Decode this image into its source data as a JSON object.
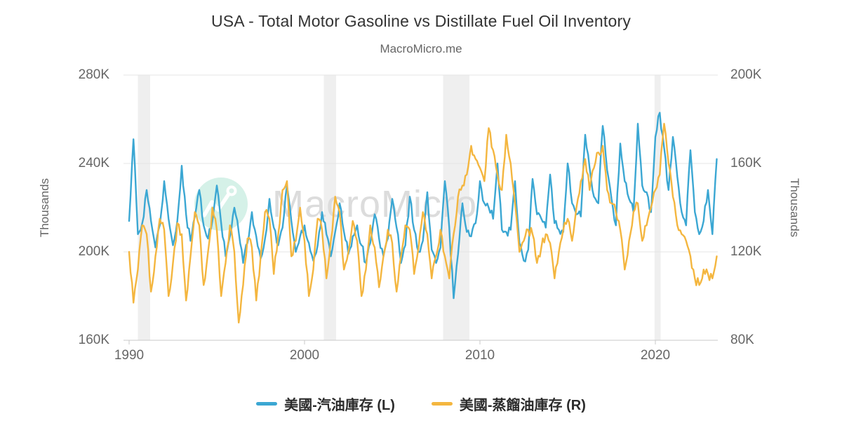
{
  "page": {
    "title": "USA - Total Motor Gasoline vs Distillate Fuel Oil Inventory",
    "subtitle": "MacroMicro.me",
    "watermark_text": "MacroMicro"
  },
  "colors": {
    "series_gasoline": "#3ba7d3",
    "series_distillate": "#f4b63f",
    "grid": "#e6e6e6",
    "axis_line": "#c8c8c8",
    "axis_text": "#666666",
    "title_text": "#333333",
    "recession_band": "#efefef",
    "watermark_circle": "#d5f1e8",
    "watermark_icon": "#ffffff",
    "watermark_text": "#dcdcdc",
    "legend_text": "#2b2b2b"
  },
  "chart_data": {
    "type": "line",
    "title": "USA - Total Motor Gasoline vs Distillate Fuel Oil Inventory",
    "subtitle": "MacroMicro.me",
    "value_unit": "K (thousands)",
    "grid": "horizontal-only",
    "legend_position": "bottom-center",
    "x_axis": {
      "min": 1989.68,
      "max": 2023.56,
      "ticks": [
        1990,
        2000,
        2010,
        2020
      ],
      "tick_labels": [
        "1990",
        "2000",
        "2010",
        "2020"
      ]
    },
    "y_left": {
      "label": "Thousands",
      "min": 160,
      "max": 280,
      "tick_values": [
        280,
        240,
        200,
        160
      ],
      "tick_labels": [
        "280K",
        "240K",
        "200K",
        "160K"
      ]
    },
    "y_right": {
      "label": "Thousands",
      "min": 80,
      "max": 200,
      "tick_values": [
        200,
        160,
        120,
        80
      ],
      "tick_labels": [
        "200K",
        "160K",
        "120K",
        "80K"
      ]
    },
    "recession_bands": [
      [
        1990.5,
        1991.2
      ],
      [
        2001.1,
        2001.8
      ],
      [
        2007.9,
        2009.4
      ],
      [
        2019.95,
        2020.3
      ]
    ],
    "render_noise": {
      "subdivisions": 3,
      "amplitude": 2.2
    },
    "series": [
      {
        "name": "美國-汽油庫存 (L)",
        "axis": "left",
        "color": "#3ba7d3",
        "x_start": 1990.0,
        "x_step": 0.25,
        "values": [
          214,
          251,
          208,
          213,
          228,
          214,
          202,
          212,
          232,
          215,
          203,
          214,
          239,
          217,
          205,
          216,
          228,
          212,
          206,
          214,
          230,
          213,
          198,
          207,
          220,
          209,
          195,
          204,
          218,
          207,
          197,
          206,
          224,
          211,
          203,
          211,
          230,
          214,
          200,
          207,
          212,
          204,
          196,
          203,
          218,
          208,
          198,
          209,
          222,
          209,
          199,
          207,
          212,
          203,
          195,
          204,
          217,
          206,
          198,
          206,
          224,
          211,
          195,
          203,
          225,
          210,
          200,
          205,
          227,
          201,
          195,
          202,
          232,
          211,
          179,
          199,
          222,
          209,
          207,
          213,
          232,
          222,
          220,
          215,
          240,
          210,
          209,
          210,
          232,
          204,
          196,
          201,
          233,
          217,
          215,
          211,
          235,
          213,
          210,
          209,
          240,
          222,
          217,
          216,
          253,
          238,
          225,
          222,
          257,
          237,
          224,
          212,
          249,
          232,
          224,
          218,
          258,
          230,
          227,
          218,
          252,
          263,
          247,
          228,
          252,
          234,
          218,
          212,
          246,
          218,
          208,
          214,
          228,
          208,
          242
        ]
      },
      {
        "name": "美國-蒸餾油庫存 (R)",
        "axis": "right",
        "color": "#f4b63f",
        "x_start": 1990.0,
        "x_step": 0.25,
        "values": [
          120,
          97,
          112,
          132,
          128,
          102,
          118,
          135,
          130,
          100,
          115,
          133,
          128,
          98,
          118,
          138,
          132,
          105,
          120,
          140,
          130,
          100,
          115,
          132,
          120,
          88,
          105,
          126,
          122,
          98,
          118,
          138,
          135,
          110,
          128,
          148,
          152,
          118,
          125,
          140,
          125,
          100,
          112,
          135,
          130,
          108,
          125,
          145,
          138,
          112,
          120,
          134,
          125,
          100,
          112,
          132,
          122,
          104,
          118,
          130,
          124,
          102,
          118,
          132,
          130,
          110,
          122,
          138,
          128,
          108,
          118,
          130,
          118,
          108,
          128,
          145,
          150,
          155,
          168,
          162,
          158,
          152,
          176,
          166,
          155,
          148,
          173,
          160,
          142,
          120,
          125,
          130,
          128,
          115,
          122,
          128,
          124,
          108,
          120,
          130,
          135,
          125,
          140,
          152,
          162,
          148,
          158,
          165,
          168,
          148,
          142,
          138,
          130,
          112,
          125,
          138,
          142,
          125,
          132,
          140,
          148,
          155,
          178,
          160,
          145,
          132,
          128,
          125,
          118,
          108,
          105,
          112,
          110,
          108,
          118
        ]
      }
    ]
  }
}
